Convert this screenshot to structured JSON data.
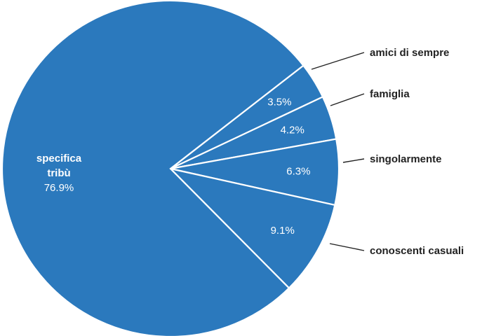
{
  "chart_data": {
    "type": "pie",
    "title": "",
    "slices": [
      {
        "label": "specifica\ntribù",
        "value": 76.9,
        "value_label": "76.9%",
        "label_position": "inside",
        "color": "#2b79bd"
      },
      {
        "label": "amici di sempre",
        "value": 3.5,
        "value_label": "3.5%",
        "label_position": "outside",
        "color": "#2b79bd"
      },
      {
        "label": "famiglia",
        "value": 4.2,
        "value_label": "4.2%",
        "label_position": "outside",
        "color": "#2b79bd"
      },
      {
        "label": "singolarmente",
        "value": 6.3,
        "value_label": "6.3%",
        "label_position": "outside",
        "color": "#2b79bd"
      },
      {
        "label": "conoscenti casuali",
        "value": 9.1,
        "value_label": "9.1%",
        "label_position": "outside",
        "color": "#2b79bd"
      }
    ],
    "slice_border_color": "#ffffff",
    "legend": "none"
  }
}
